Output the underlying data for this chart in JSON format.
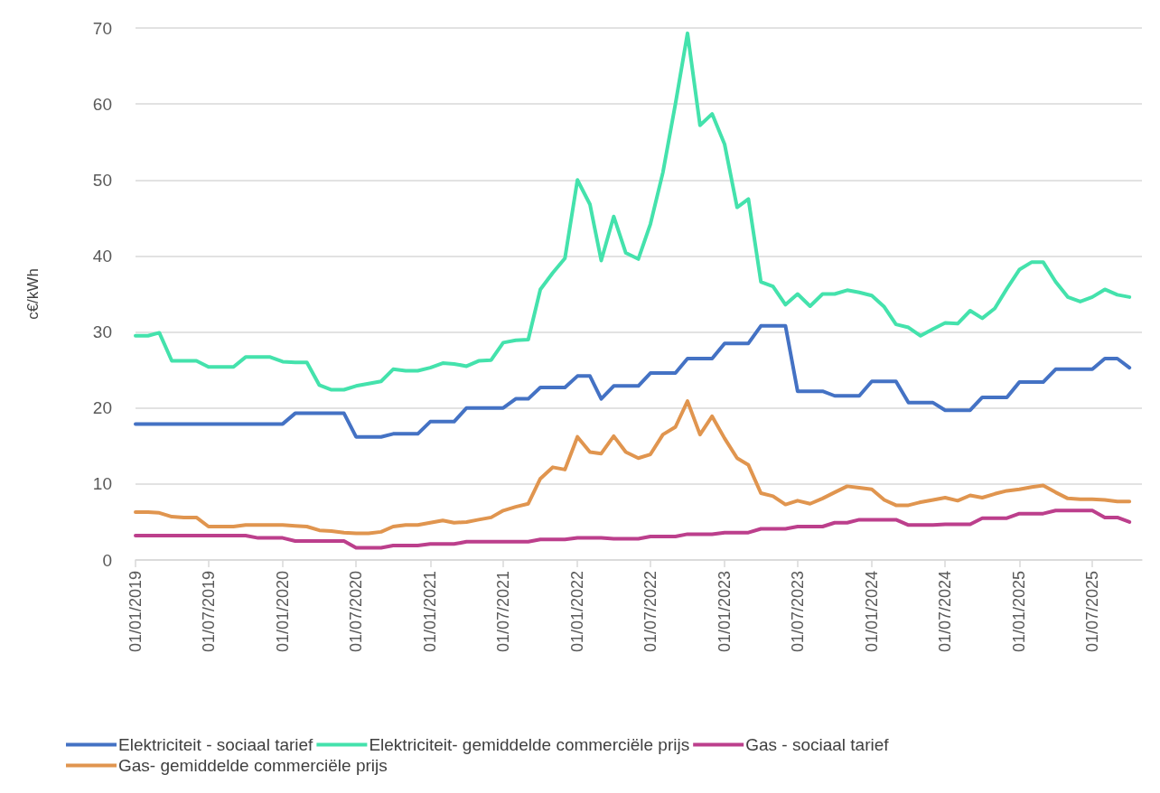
{
  "chart_data": {
    "type": "line",
    "ylabel": "c€/kWh",
    "x": [
      "2019-01",
      "2019-02",
      "2019-03",
      "2019-04",
      "2019-05",
      "2019-06",
      "2019-07",
      "2019-08",
      "2019-09",
      "2019-10",
      "2019-11",
      "2019-12",
      "2020-01",
      "2020-02",
      "2020-03",
      "2020-04",
      "2020-05",
      "2020-06",
      "2020-07",
      "2020-08",
      "2020-09",
      "2020-10",
      "2020-11",
      "2020-12",
      "2021-01",
      "2021-02",
      "2021-03",
      "2021-04",
      "2021-05",
      "2021-06",
      "2021-07",
      "2021-08",
      "2021-09",
      "2021-10",
      "2021-11",
      "2021-12",
      "2022-01",
      "2022-02",
      "2022-03",
      "2022-04",
      "2022-05",
      "2022-06",
      "2022-07",
      "2022-08",
      "2022-09",
      "2022-10",
      "2022-11",
      "2022-12",
      "2023-01",
      "2023-02",
      "2023-03",
      "2023-04",
      "2023-05",
      "2023-06",
      "2023-07",
      "2023-08",
      "2023-09",
      "2023-10",
      "2023-11",
      "2023-12",
      "2024-01",
      "2024-02",
      "2024-03",
      "2024-04",
      "2024-05",
      "2024-06",
      "2024-07",
      "2024-08",
      "2024-09",
      "2024-10",
      "2024-11",
      "2024-12",
      "2025-01",
      "2025-02",
      "2025-03",
      "2025-04",
      "2025-05",
      "2025-06",
      "2025-07",
      "2025-08",
      "2025-09",
      "2025-10"
    ],
    "series": [
      {
        "name": "Elektriciteit - sociaal tarief",
        "color": "#4472c4",
        "values": [
          17.9,
          17.9,
          17.9,
          17.9,
          17.9,
          17.9,
          17.9,
          17.9,
          17.9,
          17.9,
          17.9,
          17.9,
          17.9,
          19.3,
          19.3,
          19.3,
          19.3,
          19.3,
          16.2,
          16.2,
          16.2,
          16.6,
          16.6,
          16.6,
          18.2,
          18.2,
          18.2,
          20.0,
          20.0,
          20.0,
          20.0,
          21.2,
          21.2,
          22.7,
          22.7,
          22.7,
          24.2,
          24.2,
          21.2,
          22.9,
          22.9,
          22.9,
          24.6,
          24.6,
          24.6,
          26.5,
          26.5,
          26.5,
          28.5,
          28.5,
          28.5,
          30.8,
          30.8,
          30.8,
          22.2,
          22.2,
          22.2,
          21.6,
          21.6,
          21.6,
          23.5,
          23.5,
          23.5,
          20.7,
          20.7,
          20.7,
          19.7,
          19.7,
          19.7,
          21.4,
          21.4,
          21.4,
          23.4,
          23.4,
          23.4,
          25.1,
          25.1,
          25.1,
          25.1,
          26.5,
          26.5,
          25.3
        ]
      },
      {
        "name": "Elektriciteit- gemiddelde commerciële prijs",
        "color": "#44e2ac",
        "values": [
          29.5,
          29.5,
          29.9,
          26.2,
          26.2,
          26.2,
          25.4,
          25.4,
          25.4,
          26.7,
          26.7,
          26.7,
          26.1,
          26.0,
          26.0,
          23.0,
          22.4,
          22.4,
          22.9,
          23.2,
          23.5,
          25.1,
          24.9,
          24.9,
          25.3,
          25.9,
          25.8,
          25.5,
          26.2,
          26.3,
          28.6,
          28.9,
          29.0,
          35.6,
          37.8,
          39.7,
          50.0,
          46.8,
          39.4,
          45.2,
          40.4,
          39.6,
          44.2,
          51.0,
          60.0,
          69.3,
          57.2,
          58.7,
          54.7,
          46.4,
          47.5,
          36.6,
          36.0,
          33.6,
          35.0,
          33.4,
          35.0,
          35.0,
          35.5,
          35.2,
          34.8,
          33.3,
          31.0,
          30.6,
          29.5,
          30.4,
          31.2,
          31.1,
          32.8,
          31.8,
          33.1,
          35.7,
          38.2,
          39.2,
          39.2,
          36.6,
          34.6,
          34.0,
          34.6,
          35.6,
          34.9,
          34.6
        ]
      },
      {
        "name": "Gas - sociaal tarief",
        "color": "#bc3f8c",
        "values": [
          3.2,
          3.2,
          3.2,
          3.2,
          3.2,
          3.2,
          3.2,
          3.2,
          3.2,
          3.2,
          2.9,
          2.9,
          2.9,
          2.5,
          2.5,
          2.5,
          2.5,
          2.5,
          1.6,
          1.6,
          1.6,
          1.9,
          1.9,
          1.9,
          2.1,
          2.1,
          2.1,
          2.4,
          2.4,
          2.4,
          2.4,
          2.4,
          2.4,
          2.7,
          2.7,
          2.7,
          2.9,
          2.9,
          2.9,
          2.8,
          2.8,
          2.8,
          3.1,
          3.1,
          3.1,
          3.4,
          3.4,
          3.4,
          3.6,
          3.6,
          3.6,
          4.1,
          4.1,
          4.1,
          4.4,
          4.4,
          4.4,
          4.9,
          4.9,
          5.3,
          5.3,
          5.3,
          5.3,
          4.6,
          4.6,
          4.6,
          4.7,
          4.7,
          4.7,
          5.5,
          5.5,
          5.5,
          6.1,
          6.1,
          6.1,
          6.5,
          6.5,
          6.5,
          6.5,
          5.6,
          5.6,
          5.0
        ]
      },
      {
        "name": "Gas- gemiddelde commerciële prijs",
        "color": "#e0954f",
        "values": [
          6.3,
          6.3,
          6.2,
          5.7,
          5.6,
          5.6,
          4.4,
          4.4,
          4.4,
          4.6,
          4.6,
          4.6,
          4.6,
          4.5,
          4.4,
          3.9,
          3.8,
          3.6,
          3.5,
          3.5,
          3.7,
          4.4,
          4.6,
          4.6,
          4.9,
          5.2,
          4.9,
          5.0,
          5.3,
          5.6,
          6.5,
          7.0,
          7.4,
          10.7,
          12.2,
          11.9,
          16.2,
          14.2,
          14.0,
          16.3,
          14.2,
          13.4,
          13.9,
          16.5,
          17.5,
          20.9,
          16.5,
          18.9,
          16.0,
          13.4,
          12.5,
          8.8,
          8.4,
          7.3,
          7.8,
          7.4,
          8.1,
          8.9,
          9.7,
          9.5,
          9.3,
          7.9,
          7.2,
          7.2,
          7.6,
          7.9,
          8.2,
          7.8,
          8.5,
          8.2,
          8.7,
          9.1,
          9.3,
          9.6,
          9.8,
          8.9,
          8.1,
          8.0,
          8.0,
          7.9,
          7.7,
          7.7
        ]
      }
    ],
    "xlim": [
      "2019-01",
      "2025-11"
    ],
    "xticks": [
      {
        "value": "2019-01-01",
        "label": "01/01/2019"
      },
      {
        "value": "2019-07-01",
        "label": "01/07/2019"
      },
      {
        "value": "2020-01-01",
        "label": "01/01/2020"
      },
      {
        "value": "2020-07-01",
        "label": "01/07/2020"
      },
      {
        "value": "2021-01-01",
        "label": "01/01/2021"
      },
      {
        "value": "2021-07-01",
        "label": "01/07/2021"
      },
      {
        "value": "2022-01-01",
        "label": "01/01/2022"
      },
      {
        "value": "2022-07-01",
        "label": "01/07/2022"
      },
      {
        "value": "2023-01-01",
        "label": "01/01/2023"
      },
      {
        "value": "2023-07-01",
        "label": "01/07/2023"
      },
      {
        "value": "2024-01-01",
        "label": "01/01/2024"
      },
      {
        "value": "2024-07-01",
        "label": "01/07/2024"
      },
      {
        "value": "2025-01-01",
        "label": "01/01/2025"
      },
      {
        "value": "2025-07-01",
        "label": "01/07/2025"
      }
    ],
    "ylim": [
      0,
      70
    ],
    "yticks": [
      0,
      10,
      20,
      30,
      40,
      50,
      60,
      70
    ],
    "grid": "y",
    "legend": "bottom",
    "marker": "none",
    "line_style": "solid"
  }
}
